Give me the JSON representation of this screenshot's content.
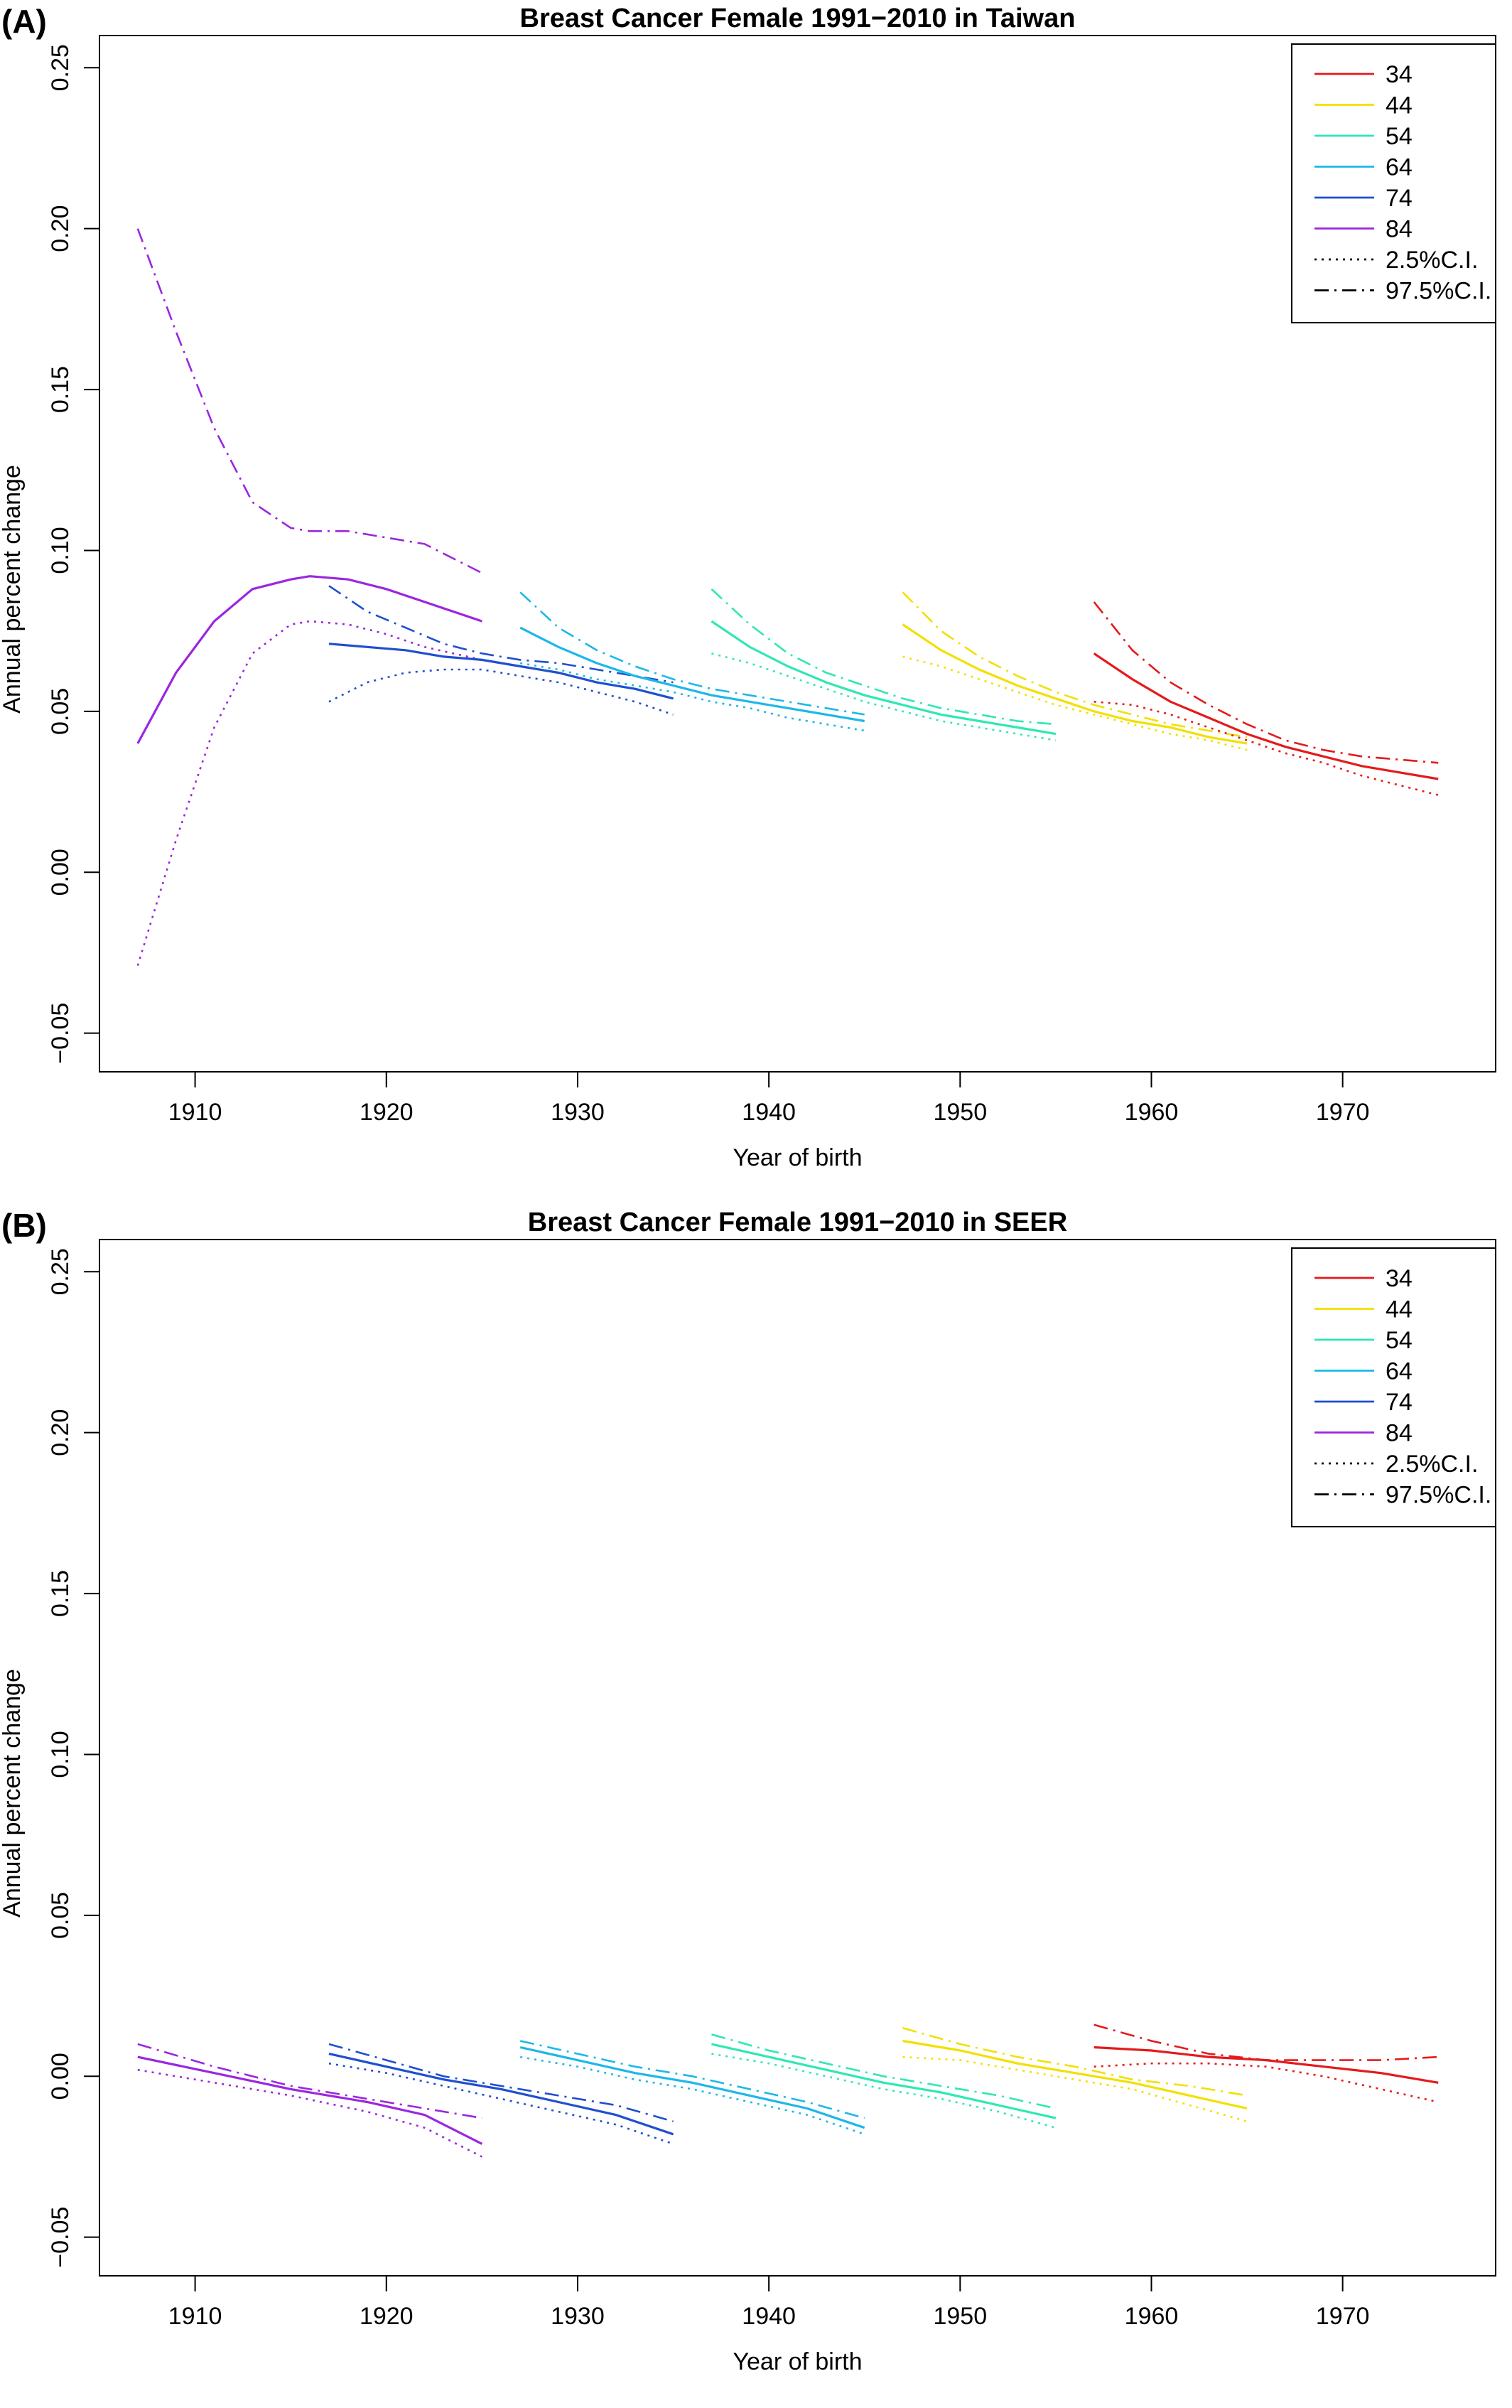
{
  "chart_data": [
    {
      "panel": "(A)",
      "type": "line",
      "title": "Breast Cancer Female 1991−2010 in Taiwan",
      "xlabel": "Year of birth",
      "ylabel": "Annual percent change",
      "xlim": [
        1905,
        1978
      ],
      "ylim": [
        -0.062,
        0.26
      ],
      "xticks": [
        1910,
        1920,
        1930,
        1940,
        1950,
        1960,
        1970
      ],
      "yticks": [
        -0.05,
        0.0,
        0.05,
        0.1,
        0.15,
        0.2,
        0.25
      ],
      "ytick_labels": [
        "−0.05",
        "0.00",
        "0.05",
        "0.10",
        "0.15",
        "0.20",
        "0.25"
      ],
      "grid": false,
      "legend_position": "top-right",
      "legend": [
        {
          "label": "34",
          "color": "#E41A1C",
          "style": "solid"
        },
        {
          "label": "44",
          "color": "#F2E000",
          "style": "solid"
        },
        {
          "label": "54",
          "color": "#2EE8B4",
          "style": "solid"
        },
        {
          "label": "64",
          "color": "#1CB8E8",
          "style": "solid"
        },
        {
          "label": "74",
          "color": "#1F4FD0",
          "style": "solid"
        },
        {
          "label": "84",
          "color": "#9B26E0",
          "style": "solid"
        },
        {
          "label": "2.5%C.I.",
          "color": "#000000",
          "style": "dotted"
        },
        {
          "label": "97.5%C.I.",
          "color": "#000000",
          "style": "dashdot"
        }
      ],
      "series": [
        {
          "name": "84",
          "color": "#9B26E0",
          "x": [
            1907,
            1909,
            1911,
            1913,
            1915,
            1916,
            1918,
            1920,
            1922,
            1925
          ],
          "y": [
            0.04,
            0.062,
            0.078,
            0.088,
            0.091,
            0.092,
            0.091,
            0.088,
            0.084,
            0.078
          ],
          "lower": [
            -0.029,
            0.01,
            0.045,
            0.068,
            0.077,
            0.078,
            0.077,
            0.074,
            0.07,
            0.066
          ],
          "upper": [
            0.2,
            0.168,
            0.138,
            0.115,
            0.107,
            0.106,
            0.106,
            0.104,
            0.102,
            0.093
          ]
        },
        {
          "name": "74",
          "color": "#1F4FD0",
          "x": [
            1917,
            1919,
            1921,
            1923,
            1925,
            1927,
            1929,
            1931,
            1933,
            1935
          ],
          "y": [
            0.071,
            0.07,
            0.069,
            0.067,
            0.066,
            0.064,
            0.062,
            0.059,
            0.057,
            0.054
          ],
          "lower": [
            0.053,
            0.059,
            0.062,
            0.063,
            0.063,
            0.061,
            0.059,
            0.056,
            0.053,
            0.049
          ],
          "upper": [
            0.089,
            0.081,
            0.076,
            0.071,
            0.068,
            0.066,
            0.065,
            0.063,
            0.061,
            0.059
          ]
        },
        {
          "name": "64",
          "color": "#1CB8E8",
          "x": [
            1927,
            1929,
            1931,
            1933,
            1935,
            1937,
            1939,
            1941,
            1943,
            1945
          ],
          "y": [
            0.076,
            0.07,
            0.065,
            0.061,
            0.058,
            0.055,
            0.053,
            0.051,
            0.049,
            0.047
          ],
          "lower": [
            0.065,
            0.063,
            0.06,
            0.058,
            0.056,
            0.053,
            0.051,
            0.048,
            0.046,
            0.044
          ],
          "upper": [
            0.087,
            0.076,
            0.069,
            0.064,
            0.06,
            0.057,
            0.055,
            0.053,
            0.051,
            0.049
          ]
        },
        {
          "name": "54",
          "color": "#2EE8B4",
          "x": [
            1937,
            1939,
            1941,
            1943,
            1945,
            1947,
            1949,
            1951,
            1953,
            1955
          ],
          "y": [
            0.078,
            0.07,
            0.064,
            0.059,
            0.055,
            0.052,
            0.049,
            0.047,
            0.045,
            0.043
          ],
          "lower": [
            0.068,
            0.065,
            0.061,
            0.057,
            0.053,
            0.05,
            0.047,
            0.045,
            0.043,
            0.041
          ],
          "upper": [
            0.088,
            0.077,
            0.068,
            0.062,
            0.058,
            0.054,
            0.051,
            0.049,
            0.047,
            0.046
          ]
        },
        {
          "name": "44",
          "color": "#F2E000",
          "x": [
            1947,
            1949,
            1951,
            1953,
            1955,
            1957,
            1959,
            1961,
            1963,
            1965
          ],
          "y": [
            0.077,
            0.069,
            0.063,
            0.058,
            0.054,
            0.05,
            0.047,
            0.045,
            0.042,
            0.04
          ],
          "lower": [
            0.067,
            0.064,
            0.06,
            0.056,
            0.052,
            0.049,
            0.046,
            0.043,
            0.041,
            0.038
          ],
          "upper": [
            0.087,
            0.075,
            0.067,
            0.061,
            0.056,
            0.052,
            0.049,
            0.046,
            0.044,
            0.042
          ]
        },
        {
          "name": "34",
          "color": "#E41A1C",
          "x": [
            1957,
            1959,
            1961,
            1963,
            1965,
            1967,
            1969,
            1971,
            1973,
            1975
          ],
          "y": [
            0.068,
            0.06,
            0.053,
            0.048,
            0.043,
            0.039,
            0.036,
            0.033,
            0.031,
            0.029
          ],
          "lower": [
            0.053,
            0.052,
            0.049,
            0.045,
            0.041,
            0.037,
            0.034,
            0.03,
            0.027,
            0.024
          ],
          "upper": [
            0.084,
            0.069,
            0.059,
            0.052,
            0.046,
            0.041,
            0.038,
            0.036,
            0.035,
            0.034
          ]
        }
      ]
    },
    {
      "panel": "(B)",
      "type": "line",
      "title": "Breast Cancer Female 1991−2010 in SEER",
      "xlabel": "Year of birth",
      "ylabel": "Annual percent change",
      "xlim": [
        1905,
        1978
      ],
      "ylim": [
        -0.062,
        0.26
      ],
      "xticks": [
        1910,
        1920,
        1930,
        1940,
        1950,
        1960,
        1970
      ],
      "yticks": [
        -0.05,
        0.0,
        0.05,
        0.1,
        0.15,
        0.2,
        0.25
      ],
      "ytick_labels": [
        "−0.05",
        "0.00",
        "0.05",
        "0.10",
        "0.15",
        "0.20",
        "0.25"
      ],
      "grid": false,
      "legend_position": "top-right",
      "legend": [
        {
          "label": "34",
          "color": "#E41A1C",
          "style": "solid"
        },
        {
          "label": "44",
          "color": "#F2E000",
          "style": "solid"
        },
        {
          "label": "54",
          "color": "#2EE8B4",
          "style": "solid"
        },
        {
          "label": "64",
          "color": "#1CB8E8",
          "style": "solid"
        },
        {
          "label": "74",
          "color": "#1F4FD0",
          "style": "solid"
        },
        {
          "label": "84",
          "color": "#9B26E0",
          "style": "solid"
        },
        {
          "label": "2.5%C.I.",
          "color": "#000000",
          "style": "dotted"
        },
        {
          "label": "97.5%C.I.",
          "color": "#000000",
          "style": "dashdot"
        }
      ],
      "series": [
        {
          "name": "84",
          "color": "#9B26E0",
          "x": [
            1907,
            1911,
            1915,
            1919,
            1922,
            1925
          ],
          "y": [
            0.006,
            0.001,
            -0.004,
            -0.008,
            -0.012,
            -0.021
          ],
          "lower": [
            0.002,
            -0.002,
            -0.006,
            -0.011,
            -0.016,
            -0.025
          ],
          "upper": [
            0.01,
            0.003,
            -0.003,
            -0.007,
            -0.01,
            -0.013
          ]
        },
        {
          "name": "74",
          "color": "#1F4FD0",
          "x": [
            1917,
            1920,
            1923,
            1926,
            1929,
            1932,
            1935
          ],
          "y": [
            0.007,
            0.003,
            -0.001,
            -0.004,
            -0.008,
            -0.012,
            -0.018
          ],
          "lower": [
            0.004,
            0.001,
            -0.003,
            -0.007,
            -0.011,
            -0.015,
            -0.021
          ],
          "upper": [
            0.01,
            0.005,
            0.0,
            -0.003,
            -0.006,
            -0.009,
            -0.014
          ]
        },
        {
          "name": "64",
          "color": "#1CB8E8",
          "x": [
            1927,
            1930,
            1933,
            1936,
            1939,
            1942,
            1945
          ],
          "y": [
            0.009,
            0.005,
            0.001,
            -0.002,
            -0.006,
            -0.01,
            -0.016
          ],
          "lower": [
            0.006,
            0.003,
            -0.001,
            -0.004,
            -0.008,
            -0.012,
            -0.018
          ],
          "upper": [
            0.011,
            0.007,
            0.003,
            0.0,
            -0.004,
            -0.008,
            -0.013
          ]
        },
        {
          "name": "54",
          "color": "#2EE8B4",
          "x": [
            1937,
            1940,
            1943,
            1946,
            1949,
            1952,
            1955
          ],
          "y": [
            0.01,
            0.006,
            0.002,
            -0.002,
            -0.005,
            -0.009,
            -0.013
          ],
          "lower": [
            0.007,
            0.004,
            0.0,
            -0.004,
            -0.007,
            -0.011,
            -0.016
          ],
          "upper": [
            0.013,
            0.008,
            0.004,
            0.0,
            -0.003,
            -0.006,
            -0.01
          ]
        },
        {
          "name": "44",
          "color": "#F2E000",
          "x": [
            1947,
            1950,
            1953,
            1956,
            1959,
            1962,
            1965
          ],
          "y": [
            0.011,
            0.008,
            0.004,
            0.001,
            -0.002,
            -0.006,
            -0.01
          ],
          "lower": [
            0.006,
            0.005,
            0.002,
            -0.001,
            -0.004,
            -0.009,
            -0.014
          ],
          "upper": [
            0.015,
            0.01,
            0.006,
            0.003,
            -0.001,
            -0.003,
            -0.006
          ]
        },
        {
          "name": "34",
          "color": "#E41A1C",
          "x": [
            1957,
            1960,
            1963,
            1966,
            1969,
            1972,
            1975
          ],
          "y": [
            0.009,
            0.008,
            0.006,
            0.005,
            0.003,
            0.001,
            -0.002
          ],
          "lower": [
            0.003,
            0.004,
            0.004,
            0.003,
            0.0,
            -0.004,
            -0.008
          ],
          "upper": [
            0.016,
            0.011,
            0.007,
            0.005,
            0.005,
            0.005,
            0.006
          ]
        }
      ]
    }
  ]
}
